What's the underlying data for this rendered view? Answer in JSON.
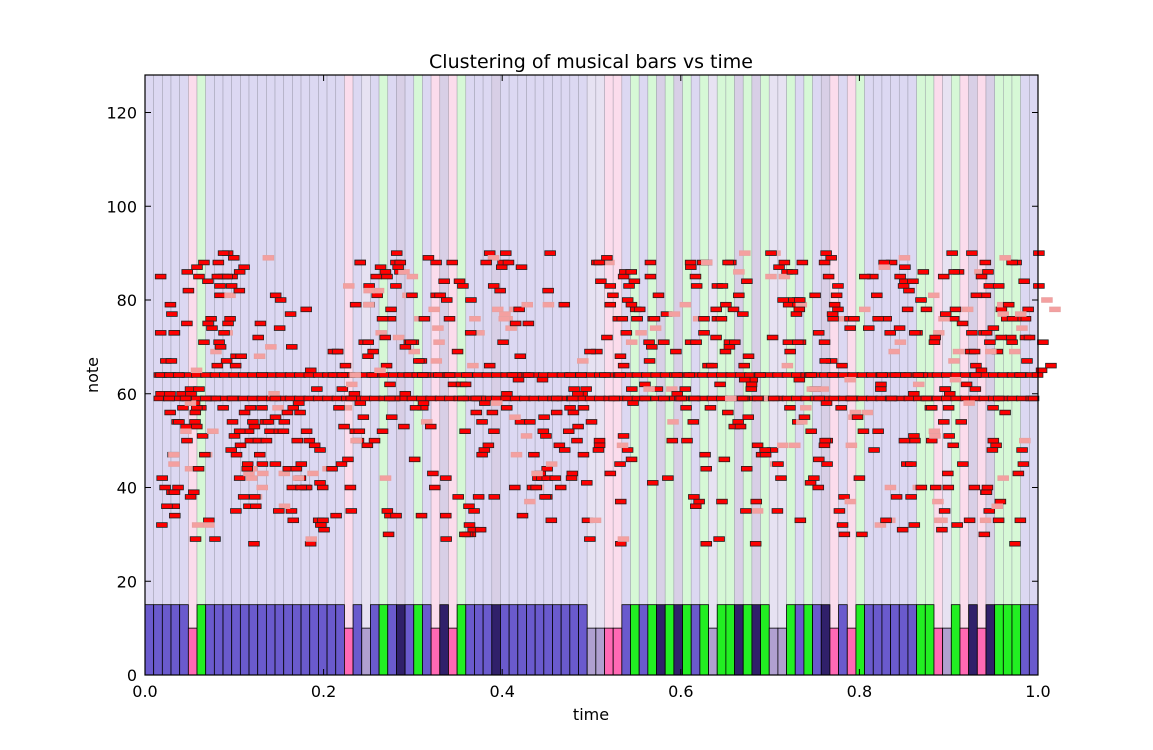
{
  "chart_data": {
    "type": "heatmap",
    "title": "Clustering of musical bars vs time",
    "xlabel": "time",
    "ylabel": "note",
    "xlim": [
      0.0,
      1.0
    ],
    "ylim": [
      0,
      128
    ],
    "x_ticks": [
      "0.0",
      "0.2",
      "0.4",
      "0.6",
      "0.8",
      "1.0"
    ],
    "x_tick_values": [
      0.0,
      0.2,
      0.4,
      0.6,
      0.8,
      1.0
    ],
    "y_ticks": [
      "0",
      "20",
      "40",
      "60",
      "80",
      "100",
      "120"
    ],
    "y_tick_values": [
      0,
      20,
      40,
      60,
      80,
      100,
      120
    ],
    "grid": false,
    "cluster_colors": {
      "0": "#6a5acd",
      "1": "#ff69b4",
      "2": "#22ee22",
      "3": "#30206a",
      "4": "#b0a0d0"
    },
    "bar_clusters": [
      0,
      0,
      0,
      0,
      0,
      1,
      2,
      0,
      0,
      0,
      0,
      0,
      0,
      0,
      0,
      0,
      0,
      0,
      0,
      0,
      0,
      0,
      0,
      1,
      0,
      4,
      0,
      2,
      0,
      3,
      0,
      2,
      0,
      1,
      3,
      1,
      2,
      0,
      0,
      0,
      3,
      0,
      0,
      0,
      0,
      0,
      0,
      0,
      0,
      0,
      0,
      4,
      4,
      1,
      1,
      0,
      2,
      0,
      2,
      3,
      2,
      3,
      2,
      0,
      2,
      4,
      2,
      2,
      3,
      2,
      3,
      2,
      4,
      4,
      2,
      0,
      2,
      0,
      3,
      1,
      0,
      1,
      2,
      0,
      0,
      0,
      0,
      0,
      0,
      2,
      2,
      1,
      4,
      2,
      1,
      3,
      1,
      3,
      2,
      2,
      2,
      0,
      0
    ],
    "melody_notes": [
      {
        "t": 0.012,
        "n": 64
      },
      {
        "t": 0.022,
        "n": 64
      },
      {
        "t": 0.032,
        "n": 64
      },
      {
        "t": 0.045,
        "n": 61
      },
      {
        "t": 0.052,
        "n": 57
      },
      {
        "t": 0.06,
        "n": 88
      },
      {
        "t": 0.068,
        "n": 76
      },
      {
        "t": 0.078,
        "n": 85
      },
      {
        "t": 0.082,
        "n": 90
      },
      {
        "t": 0.092,
        "n": 59
      },
      {
        "t": 0.1,
        "n": 52
      },
      {
        "t": 0.112,
        "n": 57
      },
      {
        "t": 0.125,
        "n": 64
      },
      {
        "t": 0.14,
        "n": 59
      },
      {
        "t": 0.15,
        "n": 54
      },
      {
        "t": 0.16,
        "n": 57
      },
      {
        "t": 0.175,
        "n": 52
      },
      {
        "t": 0.19,
        "n": 48
      },
      {
        "t": 0.205,
        "n": 69
      },
      {
        "t": 0.215,
        "n": 64
      },
      {
        "t": 0.225,
        "n": 59
      },
      {
        "t": 0.235,
        "n": 88
      },
      {
        "t": 0.245,
        "n": 83
      },
      {
        "t": 0.26,
        "n": 76
      },
      {
        "t": 0.275,
        "n": 88
      },
      {
        "t": 0.29,
        "n": 71
      },
      {
        "t": 0.305,
        "n": 64
      },
      {
        "t": 0.32,
        "n": 88
      },
      {
        "t": 0.335,
        "n": 76
      },
      {
        "t": 0.35,
        "n": 83
      },
      {
        "t": 0.365,
        "n": 59
      },
      {
        "t": 0.38,
        "n": 90
      },
      {
        "t": 0.395,
        "n": 88
      },
      {
        "t": 0.41,
        "n": 64
      },
      {
        "t": 0.425,
        "n": 54
      },
      {
        "t": 0.44,
        "n": 52
      },
      {
        "t": 0.455,
        "n": 59
      },
      {
        "t": 0.47,
        "n": 64
      },
      {
        "t": 0.485,
        "n": 57
      },
      {
        "t": 0.5,
        "n": 88
      },
      {
        "t": 0.515,
        "n": 83
      },
      {
        "t": 0.53,
        "n": 85
      },
      {
        "t": 0.545,
        "n": 76
      },
      {
        "t": 0.56,
        "n": 88
      },
      {
        "t": 0.575,
        "n": 71
      },
      {
        "t": 0.59,
        "n": 64
      },
      {
        "t": 0.605,
        "n": 88
      },
      {
        "t": 0.62,
        "n": 76
      },
      {
        "t": 0.635,
        "n": 83
      },
      {
        "t": 0.65,
        "n": 88
      },
      {
        "t": 0.665,
        "n": 66
      },
      {
        "t": 0.68,
        "n": 59
      },
      {
        "t": 0.695,
        "n": 90
      },
      {
        "t": 0.71,
        "n": 88
      },
      {
        "t": 0.725,
        "n": 71
      },
      {
        "t": 0.74,
        "n": 64
      },
      {
        "t": 0.755,
        "n": 88
      },
      {
        "t": 0.77,
        "n": 83
      },
      {
        "t": 0.785,
        "n": 59
      },
      {
        "t": 0.8,
        "n": 85
      },
      {
        "t": 0.815,
        "n": 76
      },
      {
        "t": 0.83,
        "n": 88
      },
      {
        "t": 0.845,
        "n": 87
      },
      {
        "t": 0.86,
        "n": 64
      },
      {
        "t": 0.875,
        "n": 57
      },
      {
        "t": 0.89,
        "n": 61
      },
      {
        "t": 0.905,
        "n": 86
      },
      {
        "t": 0.92,
        "n": 90
      },
      {
        "t": 0.935,
        "n": 88
      },
      {
        "t": 0.95,
        "n": 83
      },
      {
        "t": 0.965,
        "n": 88
      },
      {
        "t": 0.98,
        "n": 76
      },
      {
        "t": 0.995,
        "n": 90
      }
    ]
  }
}
